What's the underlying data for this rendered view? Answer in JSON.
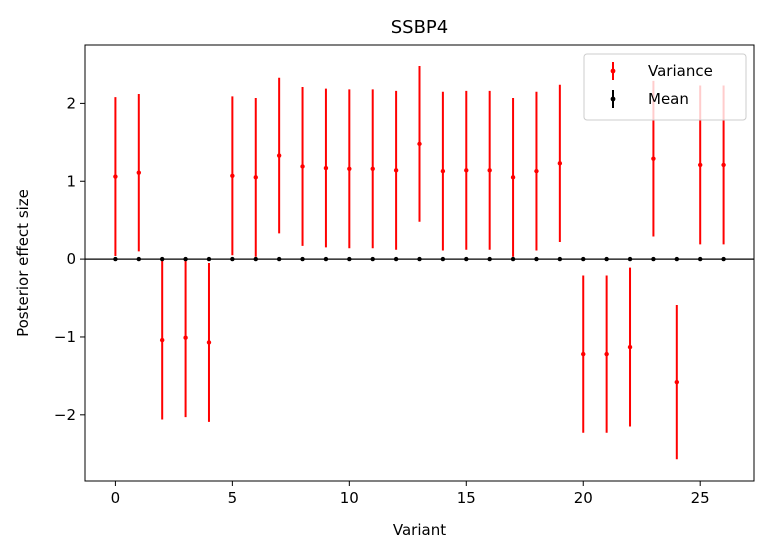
{
  "chart_data": {
    "type": "errorbar",
    "title": "SSBP4",
    "xlabel": "Variant",
    "ylabel": "Posterior effect size",
    "xlim": [
      -1.3,
      27.3
    ],
    "ylim": [
      -2.85,
      2.75
    ],
    "xticks": [
      0,
      5,
      10,
      15,
      20,
      25
    ],
    "xtick_labels": [
      "0",
      "5",
      "10",
      "15",
      "20",
      "25"
    ],
    "yticks": [
      -2,
      -1,
      0,
      1,
      2
    ],
    "ytick_labels": [
      "−2",
      "−1",
      "0",
      "1",
      "2"
    ],
    "zero_line": 0,
    "legend_position": "top-right",
    "series": [
      {
        "name": "Variance",
        "color": "#ff0000",
        "x": [
          0,
          1,
          2,
          3,
          4,
          5,
          6,
          7,
          8,
          9,
          10,
          11,
          12,
          13,
          14,
          15,
          16,
          17,
          18,
          19,
          20,
          21,
          22,
          23,
          24,
          25,
          26
        ],
        "values": [
          1.06,
          1.11,
          -1.04,
          -1.01,
          -1.07,
          1.07,
          1.05,
          1.33,
          1.19,
          1.17,
          1.16,
          1.16,
          1.14,
          1.48,
          1.13,
          1.14,
          1.14,
          1.05,
          1.13,
          1.23,
          -1.22,
          -1.22,
          -1.13,
          1.29,
          -1.58,
          1.21,
          1.21
        ],
        "err": [
          1.02,
          1.01,
          1.02,
          1.02,
          1.02,
          1.02,
          1.02,
          1.0,
          1.02,
          1.02,
          1.02,
          1.02,
          1.02,
          1.0,
          1.02,
          1.02,
          1.02,
          1.02,
          1.02,
          1.01,
          1.01,
          1.01,
          1.02,
          1.0,
          0.99,
          1.02,
          1.02
        ]
      },
      {
        "name": "Mean",
        "color": "#000000",
        "x": [
          0,
          1,
          2,
          3,
          4,
          5,
          6,
          7,
          8,
          9,
          10,
          11,
          12,
          13,
          14,
          15,
          16,
          17,
          18,
          19,
          20,
          21,
          22,
          23,
          24,
          25,
          26
        ],
        "values": [
          0,
          0,
          0,
          0,
          0,
          0,
          0,
          0,
          0,
          0,
          0,
          0,
          0,
          0,
          0,
          0,
          0,
          0,
          0,
          0,
          0,
          0,
          0,
          0,
          0,
          0,
          0
        ],
        "err": [
          0,
          0,
          0,
          0,
          0,
          0,
          0,
          0,
          0,
          0,
          0,
          0,
          0,
          0,
          0,
          0,
          0,
          0,
          0,
          0,
          0,
          0,
          0,
          0,
          0,
          0,
          0
        ]
      }
    ]
  }
}
